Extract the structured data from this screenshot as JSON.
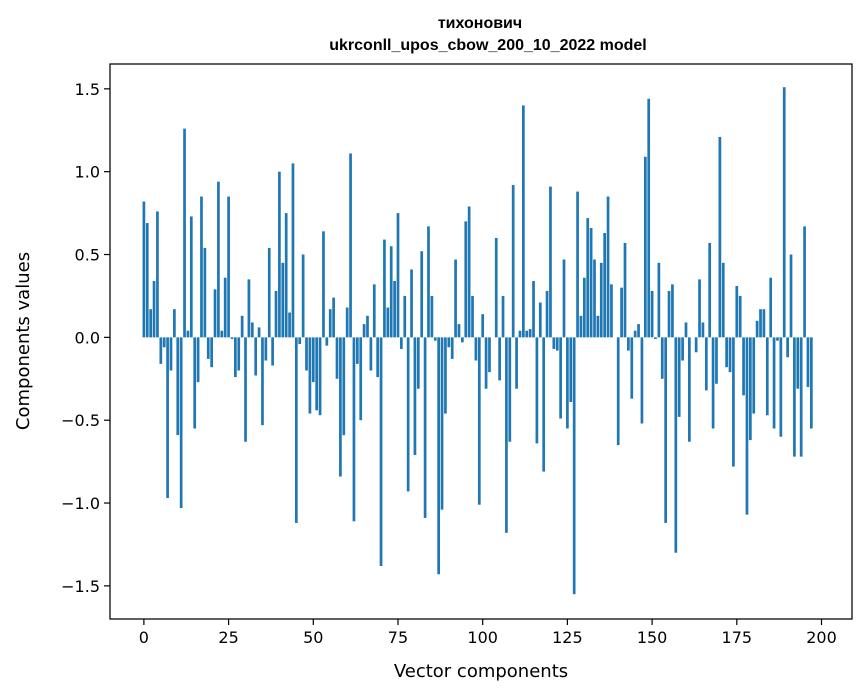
{
  "chart_data": {
    "type": "bar",
    "title_line1": "тихонович",
    "title_line2": "ukrconll_upos_cbow_200_10_2022 model",
    "xlabel": "Vector components",
    "ylabel": "Components values",
    "xlim": [
      -10,
      209
    ],
    "ylim": [
      -1.7,
      1.65
    ],
    "xticks": [
      0,
      25,
      50,
      75,
      100,
      125,
      150,
      175,
      200
    ],
    "xtick_labels": [
      "0",
      "25",
      "50",
      "75",
      "100",
      "125",
      "150",
      "175",
      "200"
    ],
    "yticks": [
      -1.5,
      -1.0,
      -0.5,
      0.0,
      0.5,
      1.0,
      1.5
    ],
    "ytick_labels": [
      "−1.5",
      "−1.0",
      "−0.5",
      "0.0",
      "0.5",
      "1.0",
      "1.5"
    ],
    "bar_color": "#1f77b4",
    "values": [
      0.82,
      0.69,
      0.17,
      0.34,
      0.76,
      -0.16,
      -0.06,
      -0.97,
      -0.2,
      0.17,
      -0.59,
      -1.03,
      1.26,
      0.04,
      0.73,
      -0.55,
      -0.27,
      0.85,
      0.54,
      -0.13,
      -0.18,
      0.29,
      0.94,
      0.04,
      0.36,
      0.85,
      -0.01,
      -0.24,
      -0.2,
      0.13,
      -0.63,
      0.35,
      0.09,
      -0.23,
      0.06,
      -0.53,
      -0.14,
      0.54,
      -0.17,
      0.28,
      1.0,
      0.45,
      0.75,
      0.15,
      1.05,
      -1.12,
      -0.04,
      0.5,
      -0.2,
      -0.46,
      -0.27,
      -0.44,
      -0.47,
      0.64,
      -0.05,
      0.17,
      0.24,
      -0.25,
      -0.84,
      -0.59,
      0.18,
      1.11,
      -1.11,
      -0.16,
      -0.5,
      0.08,
      0.13,
      -0.2,
      0.32,
      -0.24,
      -1.38,
      0.59,
      0.18,
      0.55,
      0.34,
      0.75,
      -0.07,
      0.25,
      -0.93,
      0.41,
      -0.71,
      -0.31,
      0.52,
      -1.09,
      0.67,
      0.25,
      -0.02,
      -1.43,
      -1.04,
      -0.46,
      -0.06,
      -0.13,
      0.47,
      0.08,
      -0.03,
      0.7,
      0.79,
      0.25,
      -0.14,
      -1.01,
      0.14,
      -0.31,
      -0.21,
      0.0,
      0.6,
      -0.26,
      0.25,
      -1.18,
      -0.63,
      0.92,
      -0.31,
      0.04,
      1.4,
      0.04,
      0.05,
      0.34,
      -0.64,
      0.21,
      -0.81,
      0.28,
      0.91,
      -0.07,
      -0.08,
      -0.49,
      0.47,
      -0.55,
      -0.39,
      -1.55,
      0.88,
      0.13,
      0.36,
      0.72,
      0.66,
      0.47,
      0.13,
      0.45,
      0.63,
      0.85,
      0.32,
      0.0,
      -0.65,
      0.3,
      0.57,
      -0.08,
      -0.37,
      0.04,
      0.08,
      -0.52,
      1.09,
      1.44,
      0.28,
      -0.01,
      0.45,
      -0.25,
      -1.12,
      0.28,
      0.32,
      -1.3,
      -0.48,
      -0.14,
      0.09,
      -0.63,
      0.0,
      -0.09,
      0.35,
      0.09,
      -0.32,
      0.57,
      -0.55,
      -0.28,
      1.21,
      0.45,
      -0.18,
      -0.21,
      -0.78,
      0.31,
      0.25,
      -0.35,
      -1.07,
      -0.62,
      -0.46,
      0.1,
      0.17,
      0.17,
      -0.47,
      0.36,
      -0.55,
      -0.02,
      -0.6,
      1.51,
      -0.12,
      0.5,
      -0.72,
      -0.31,
      -0.72,
      0.67,
      -0.3,
      -0.55
    ]
  }
}
